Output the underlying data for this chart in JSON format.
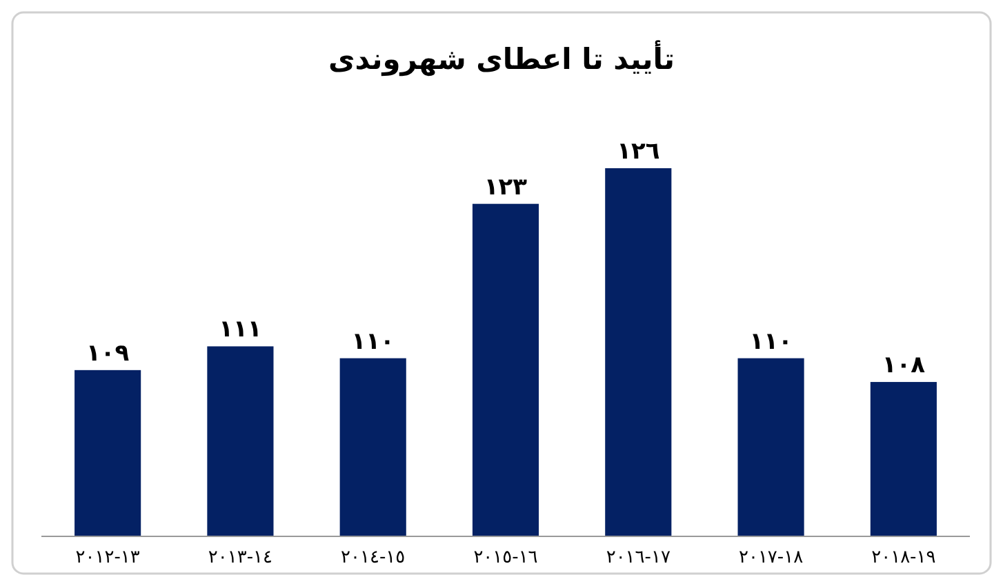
{
  "chart_data": {
    "type": "bar",
    "title": "تأیید تا اعطای شهروندی",
    "categories": [
      "٢٠١٢-١٣",
      "٢٠١٣-١٤",
      "٢٠١٤-١٥",
      "٢٠١٥-١٦",
      "٢٠١٦-١٧",
      "٢٠١٧-١٨",
      "٢٠١٨-١٩"
    ],
    "values": [
      109,
      111,
      110,
      123,
      126,
      110,
      108
    ],
    "value_labels": [
      "١٠٩",
      "١١١",
      "١١٠",
      "١٢٣",
      "١٢٦",
      "١١٠",
      "١٠٨"
    ],
    "color": "#042164",
    "ylim": [
      95,
      126
    ],
    "tick_labels": "x"
  }
}
